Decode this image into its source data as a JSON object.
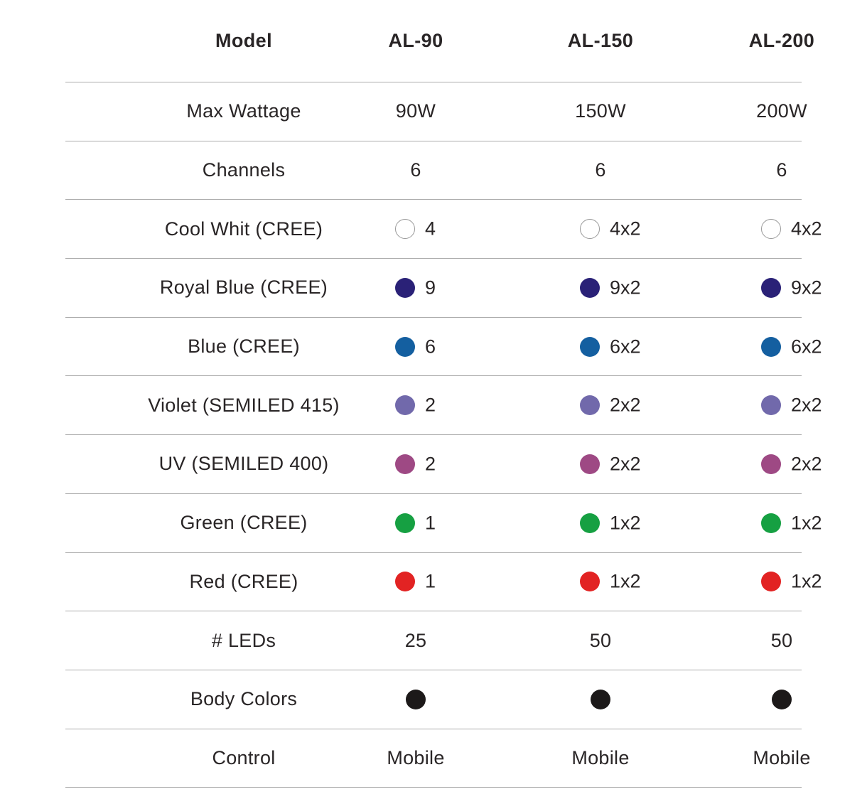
{
  "colors": {
    "background": "#ffffff",
    "text": "#292526",
    "divider": "#ababab"
  },
  "table": {
    "header": {
      "label": "Model",
      "columns": [
        "AL-90",
        "AL-150",
        "AL-200"
      ]
    },
    "rows": [
      {
        "label": "Max Wattage",
        "type": "text",
        "values": [
          "90W",
          "150W",
          "200W"
        ]
      },
      {
        "label": "Channels",
        "type": "text",
        "values": [
          "6",
          "6",
          "6"
        ]
      },
      {
        "label": "Cool Whit (CREE)",
        "type": "led",
        "dot_color": "#ffffff",
        "dot_border_color": "#999999",
        "values": [
          "4",
          "4x2",
          "4x2"
        ]
      },
      {
        "label": "Royal Blue (CREE)",
        "type": "led",
        "dot_color": "#2a2177",
        "values": [
          "9",
          "9x2",
          "9x2"
        ]
      },
      {
        "label": "Blue (CREE)",
        "type": "led",
        "dot_color": "#145fa0",
        "values": [
          "6",
          "6x2",
          "6x2"
        ]
      },
      {
        "label": "Violet (SEMILED 415)",
        "type": "led",
        "dot_color": "#7169ab",
        "values": [
          "2",
          "2x2",
          "2x2"
        ]
      },
      {
        "label": "UV (SEMILED 400)",
        "type": "led",
        "dot_color": "#9e4984",
        "values": [
          "2",
          "2x2",
          "2x2"
        ]
      },
      {
        "label": "Green (CREE)",
        "type": "led",
        "dot_color": "#16a042",
        "values": [
          "1",
          "1x2",
          "1x2"
        ]
      },
      {
        "label": "Red (CREE)",
        "type": "led",
        "dot_color": "#e22323",
        "values": [
          "1",
          "1x2",
          "1x2"
        ]
      },
      {
        "label": "# LEDs",
        "type": "text",
        "values": [
          "25",
          "50",
          "50"
        ]
      },
      {
        "label": "Body Colors",
        "type": "dot-only",
        "dot_color": "#1c1919"
      },
      {
        "label": "Control",
        "type": "text",
        "values": [
          "Mobile",
          "Mobile",
          "Mobile"
        ]
      }
    ]
  }
}
